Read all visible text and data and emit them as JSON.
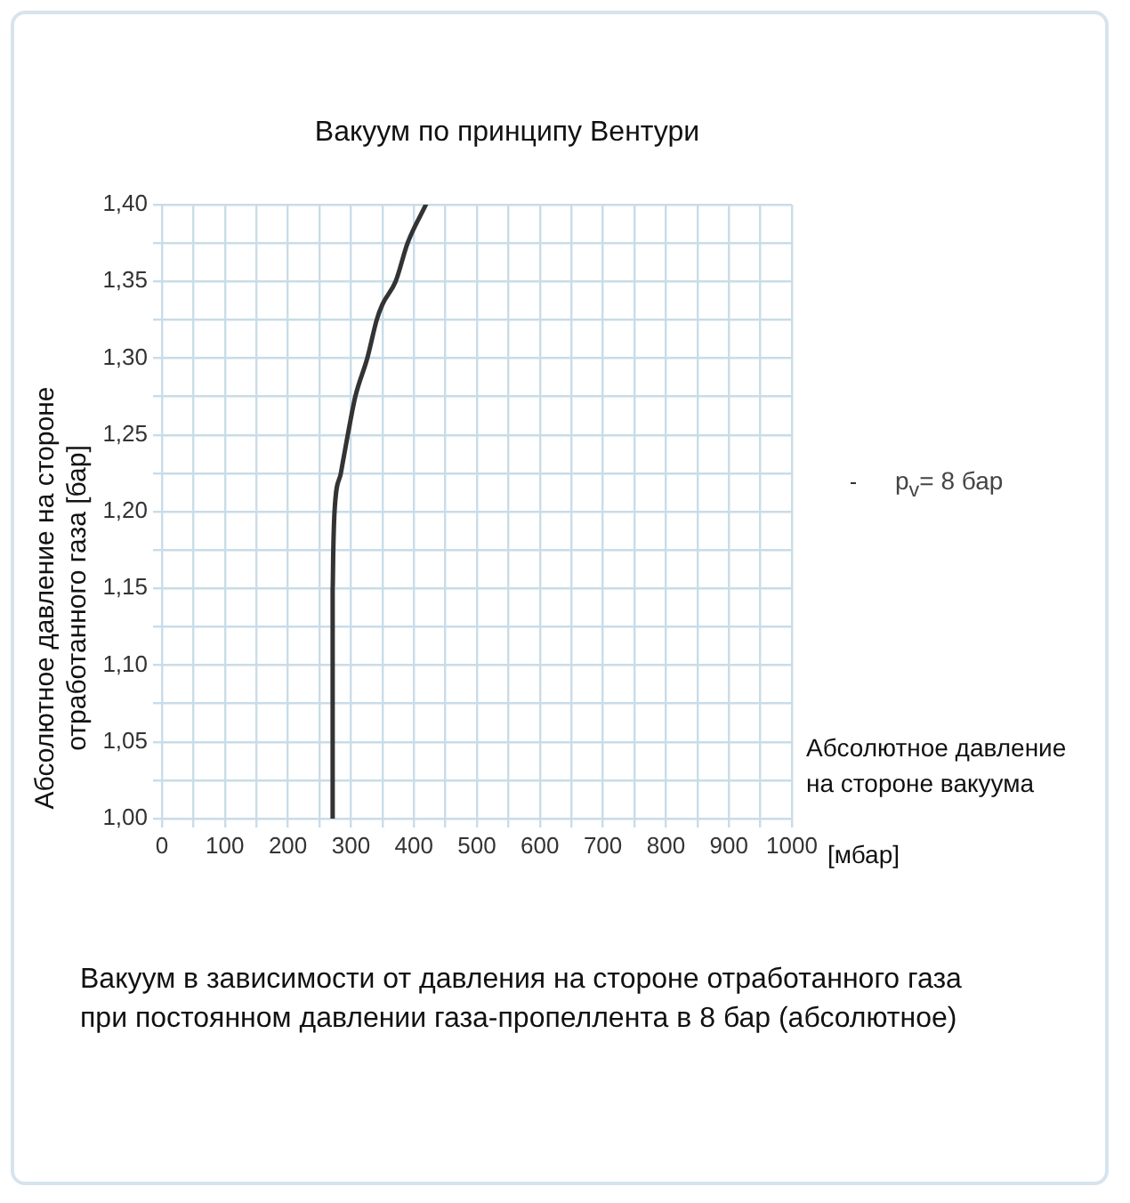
{
  "chart_data": {
    "type": "line",
    "title": "Вакуум по принципу Вентури",
    "xlabel": "Абсолютное давление на стороне вакуума",
    "ylabel": "Абсолютное давление на стороне отработанного газа [бар]",
    "annotations": [
      "[мбар]",
      "Вакуум в зависимости от давления на стороне отработанного газа при постоянном давлении газа-пропеллента в 8 бар (абсолютное)"
    ],
    "series": [
      {
        "name": "p$_{v}$= 8 бар",
        "color": "#333333",
        "x": [
          271,
          271,
          271,
          272,
          274,
          284,
          295,
          307,
          326,
          341,
          350,
          371,
          390,
          419
        ],
        "values": [
          1.0,
          1.1,
          1.15,
          1.175,
          1.2,
          1.225,
          1.25,
          1.275,
          1.3,
          1.325,
          1.335,
          1.35,
          1.375,
          1.4
        ]
      }
    ],
    "xlim": [
      0,
      1000
    ],
    "xticks": [
      0,
      {
        "value": 50,
        "label": null
      },
      100,
      {
        "value": 150,
        "label": null
      },
      200,
      {
        "value": 250,
        "label": null
      },
      300,
      {
        "value": 350,
        "label": null
      },
      400,
      {
        "value": 450,
        "label": null
      },
      500,
      {
        "value": 550,
        "label": null
      },
      600,
      {
        "value": 650,
        "label": null
      },
      700,
      {
        "value": 750,
        "label": null
      },
      800,
      {
        "value": 850,
        "label": null
      },
      900,
      {
        "value": 950,
        "label": null
      },
      1000
    ],
    "ylim": [
      1.0,
      1.4
    ],
    "yticks": [
      {
        "value": 1.0,
        "label": "1,00"
      },
      {
        "value": 1.025,
        "label": null
      },
      {
        "value": 1.05,
        "label": "1,05"
      },
      {
        "value": 1.075,
        "label": null
      },
      {
        "value": 1.1,
        "label": "1,10"
      },
      {
        "value": 1.125,
        "label": null
      },
      {
        "value": 1.15,
        "label": "1,15"
      },
      {
        "value": 1.175,
        "label": null
      },
      {
        "value": 1.2,
        "label": "1,20"
      },
      {
        "value": 1.225,
        "label": null
      },
      {
        "value": 1.25,
        "label": "1,25"
      },
      {
        "value": 1.275,
        "label": null
      },
      {
        "value": 1.3,
        "label": "1,30"
      },
      {
        "value": 1.325,
        "label": null
      },
      {
        "value": 1.35,
        "label": "1,35"
      },
      {
        "value": 1.375,
        "label": null
      },
      {
        "value": 1.4,
        "label": "1,40"
      }
    ],
    "grid": true,
    "legend": "right",
    "marker": "none",
    "line_style": "solid"
  }
}
